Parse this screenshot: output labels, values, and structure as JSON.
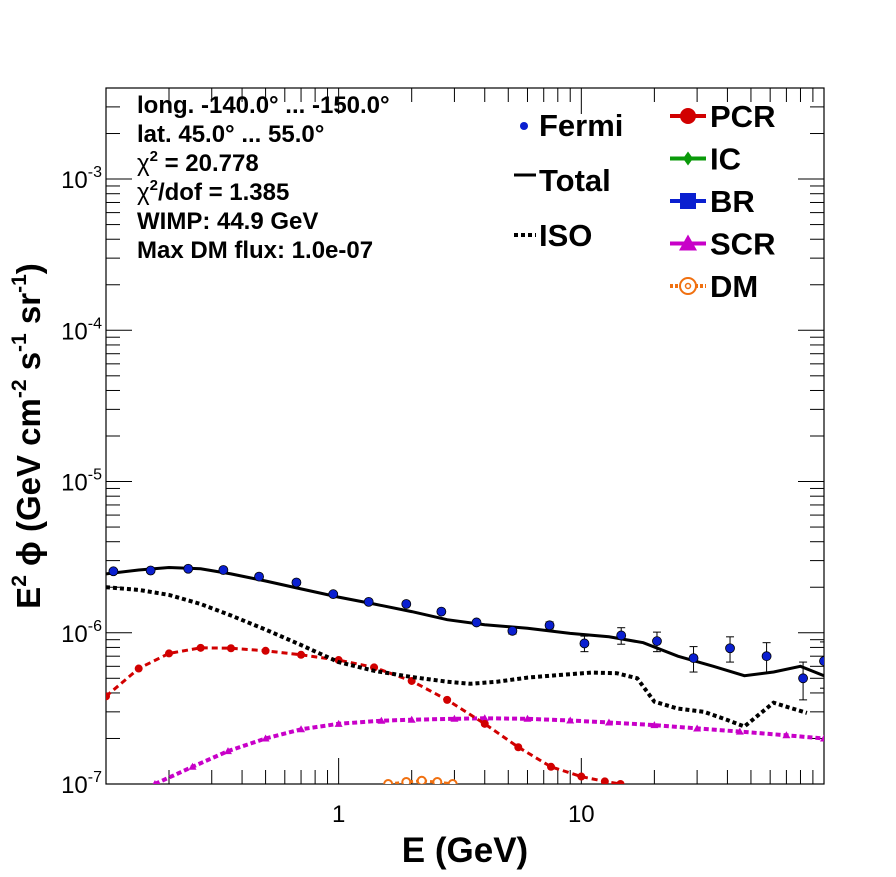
{
  "chart_data": {
    "type": "scatter",
    "xlabel": "E (GeV)",
    "ylabel_parts": {
      "prefix": "E",
      "prefix_sup": "2",
      "phi": "ϕ",
      "body": " (GeV cm",
      "sup1": "-2",
      "mid": " s",
      "sup2": "-1",
      "mid2": " sr",
      "sup3": "-1",
      "end": ")"
    },
    "x_scale": "log",
    "y_scale": "log",
    "xlim": [
      0.11,
      100
    ],
    "ylim": [
      1e-07,
      0.004
    ],
    "x_ticks": [
      {
        "v": 1,
        "label": "1"
      },
      {
        "v": 10,
        "label": "10"
      }
    ],
    "y_ticks": [
      {
        "v": 1e-07,
        "base": "10",
        "exp": "-7"
      },
      {
        "v": 1e-06,
        "base": "10",
        "exp": "-6"
      },
      {
        "v": 1e-05,
        "base": "10",
        "exp": "-5"
      },
      {
        "v": 0.0001,
        "base": "10",
        "exp": "-4"
      },
      {
        "v": 0.001,
        "base": "10",
        "exp": "-3"
      }
    ],
    "info_lines": [
      {
        "text": "long. -140.0° ... -150.0°"
      },
      {
        "text": "lat. 45.0° ... 55.0°"
      },
      {
        "chi": "χ",
        "sup": "2",
        "text": " = 20.778"
      },
      {
        "chi": "χ",
        "sup": "2",
        "text": "/dof = 1.385"
      },
      {
        "text": "WIMP: 44.9 GeV"
      },
      {
        "text": "Max DM flux: 1.0e-07"
      }
    ],
    "legend_left": [
      {
        "label": "Fermi",
        "marker": "dot",
        "color": "#0a1fd0"
      },
      {
        "label": "Total",
        "marker": "line",
        "color": "#000000"
      },
      {
        "label": "ISO",
        "marker": "dotted",
        "color": "#000000"
      }
    ],
    "legend_right": [
      {
        "label": "PCR",
        "marker": "circle",
        "color": "#d10000"
      },
      {
        "label": "IC",
        "marker": "diamond",
        "color": "#0a9a0a"
      },
      {
        "label": "BR",
        "marker": "square",
        "color": "#0a1fd0"
      },
      {
        "label": "SCR",
        "marker": "triangle",
        "color": "#c800c8"
      },
      {
        "label": "DM",
        "marker": "open-circle",
        "color": "#f07010"
      }
    ],
    "series": [
      {
        "name": "Fermi",
        "color": "#0a1fd0",
        "x": [
          0.118,
          0.168,
          0.24,
          0.335,
          0.47,
          0.67,
          0.95,
          1.33,
          1.9,
          2.65,
          3.7,
          5.2,
          7.4,
          10.3,
          14.6,
          20.5,
          29,
          41,
          58,
          82,
          100
        ],
        "y": [
          2.55e-06,
          2.58e-06,
          2.65e-06,
          2.6e-06,
          2.35e-06,
          2.15e-06,
          1.8e-06,
          1.6e-06,
          1.55e-06,
          1.38e-06,
          1.17e-06,
          1.03e-06,
          1.12e-06,
          8.5e-07,
          9.6e-07,
          8.8e-07,
          6.8e-07,
          7.9e-07,
          7e-07,
          5e-07,
          6.5e-07
        ],
        "yerr": [
          0,
          0,
          0,
          0,
          0,
          0,
          0,
          0,
          0,
          0,
          0,
          5e-08,
          6e-08,
          1e-07,
          1.2e-07,
          1.3e-07,
          1.3e-07,
          1.5e-07,
          1.6e-07,
          1.4e-07,
          2.2e-07
        ]
      },
      {
        "name": "Total",
        "color": "#000000",
        "x": [
          0.11,
          0.15,
          0.2,
          0.27,
          0.36,
          0.5,
          0.7,
          1.0,
          1.4,
          2.0,
          2.8,
          4.0,
          6.0,
          9.0,
          13,
          18,
          25,
          35,
          47,
          62,
          80,
          100
        ],
        "y": [
          2.45e-06,
          2.6e-06,
          2.7e-06,
          2.65e-06,
          2.45e-06,
          2.2e-06,
          1.95e-06,
          1.72e-06,
          1.55e-06,
          1.38e-06,
          1.22e-06,
          1.13e-06,
          1.07e-06,
          9.9e-07,
          9.4e-07,
          8.6e-07,
          7e-07,
          6e-07,
          5.2e-07,
          5.5e-07,
          6e-07,
          5.2e-07
        ]
      },
      {
        "name": "ISO",
        "color": "#000000",
        "x": [
          0.11,
          0.15,
          0.2,
          0.27,
          0.36,
          0.5,
          0.7,
          1.0,
          1.4,
          2.0,
          2.8,
          3.5,
          4.5,
          6,
          8,
          11,
          14,
          17,
          20,
          25,
          32,
          40,
          47,
          55,
          62,
          72,
          85
        ],
        "y": [
          2e-06,
          1.92e-06,
          1.78e-06,
          1.55e-06,
          1.3e-06,
          1.05e-06,
          8.3e-07,
          6.4e-07,
          5.6e-07,
          5.1e-07,
          4.75e-07,
          4.6e-07,
          4.75e-07,
          5.05e-07,
          5.25e-07,
          5.45e-07,
          5.4e-07,
          5e-07,
          3.5e-07,
          3.15e-07,
          3e-07,
          2.65e-07,
          2.4e-07,
          2.95e-07,
          3.45e-07,
          3.2e-07,
          2.95e-07
        ]
      },
      {
        "name": "PCR",
        "color": "#d10000",
        "x": [
          0.11,
          0.15,
          0.2,
          0.27,
          0.36,
          0.5,
          0.7,
          1.0,
          1.4,
          2.0,
          2.8,
          4.0,
          5.5,
          7.5,
          10,
          12.5,
          14.5
        ],
        "y": [
          3.8e-07,
          5.8e-07,
          7.3e-07,
          7.95e-07,
          7.9e-07,
          7.6e-07,
          7.15e-07,
          6.6e-07,
          5.9e-07,
          4.8e-07,
          3.6e-07,
          2.5e-07,
          1.75e-07,
          1.3e-07,
          1.12e-07,
          1.04e-07,
          1e-07
        ]
      },
      {
        "name": "SCR",
        "color": "#c800c8",
        "x": [
          0.175,
          0.25,
          0.35,
          0.5,
          0.7,
          1.0,
          1.5,
          2.0,
          3.0,
          4.0,
          6.0,
          9.0,
          13,
          20,
          30,
          45,
          70,
          100
        ],
        "y": [
          1e-07,
          1.3e-07,
          1.65e-07,
          2e-07,
          2.3e-07,
          2.5e-07,
          2.62e-07,
          2.66e-07,
          2.7e-07,
          2.72e-07,
          2.7e-07,
          2.63e-07,
          2.55e-07,
          2.45e-07,
          2.33e-07,
          2.22e-07,
          2.1e-07,
          2e-07
        ]
      },
      {
        "name": "DM",
        "color": "#f07010",
        "x": [
          1.6,
          1.9,
          2.2,
          2.55,
          2.95
        ],
        "y": [
          1e-07,
          1.03e-07,
          1.05e-07,
          1.03e-07,
          1e-07
        ]
      }
    ]
  }
}
